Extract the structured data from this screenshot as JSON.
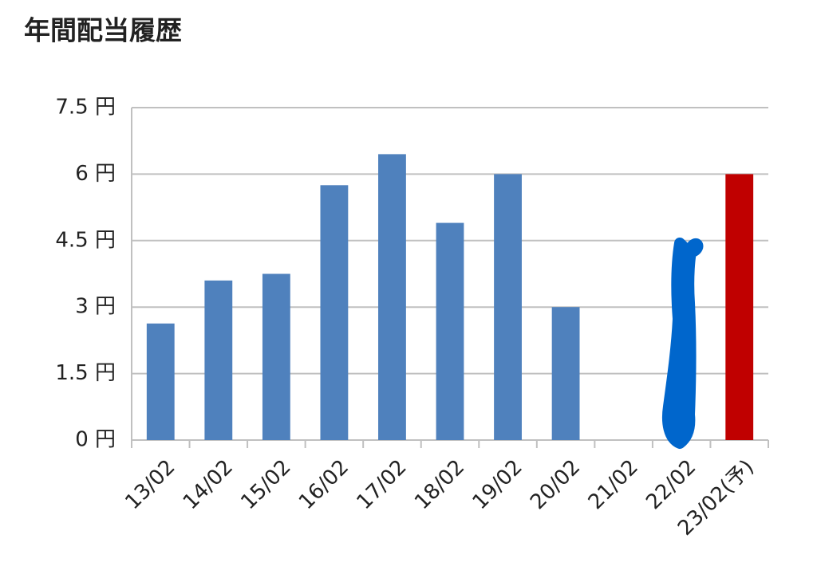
{
  "chart_data": {
    "type": "bar",
    "title": "年間配当履歴",
    "categories": [
      "13/02",
      "14/02",
      "15/02",
      "16/02",
      "17/02",
      "18/02",
      "19/02",
      "20/02",
      "21/02",
      "22/02",
      "23/02(予)"
    ],
    "values": [
      2.63,
      3.6,
      3.75,
      5.75,
      6.45,
      4.9,
      6,
      3,
      0,
      null,
      6
    ],
    "colors": [
      "#4f81bd",
      "#4f81bd",
      "#4f81bd",
      "#4f81bd",
      "#4f81bd",
      "#4f81bd",
      "#4f81bd",
      "#4f81bd",
      "#4f81bd",
      "#4f81bd",
      "#c00000"
    ],
    "ylim": [
      0,
      7.5
    ],
    "yticks": [
      {
        "value": 0,
        "label": "0 円"
      },
      {
        "value": 1.5,
        "label": "1.5 円"
      },
      {
        "value": 3,
        "label": "3 円"
      },
      {
        "value": 4.5,
        "label": "4.5 円"
      },
      {
        "value": 6,
        "label": "6 円"
      },
      {
        "value": 7.5,
        "label": "7.5 円"
      }
    ],
    "grid": true
  }
}
